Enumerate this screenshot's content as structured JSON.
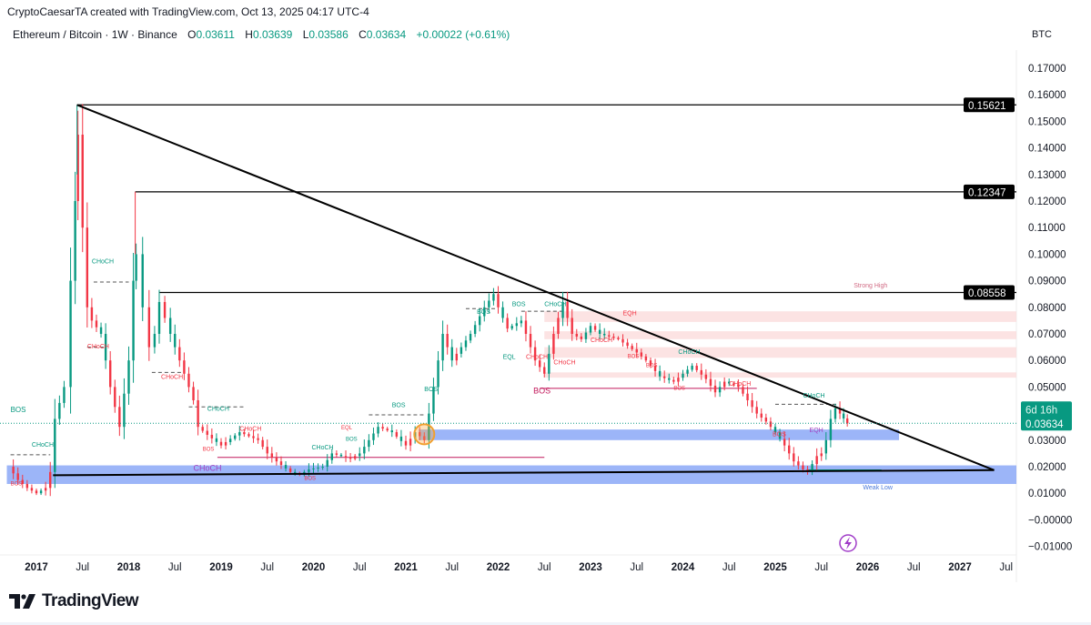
{
  "header": {
    "credit": "CryptoCaesarTA created with TradingView.com, Oct 13, 2025 04:17 UTC-4",
    "symbol": "Ethereum / Bitcoin · 1W · Binance",
    "o_label": "O",
    "o": "0.03611",
    "h_label": "H",
    "h": "0.03639",
    "l_label": "L",
    "l": "0.03586",
    "c_label": "C",
    "c": "0.03634",
    "change": "+0.00022 (+0.61%)",
    "currency": "BTC"
  },
  "branding": {
    "logo_text": "TradingView"
  },
  "colors": {
    "up": "#089981",
    "down": "#f23645",
    "zone_blue": "#7b9cf5",
    "zone_pink": "#fbdcdc",
    "bos_red": "#c2185b"
  },
  "chart_data": {
    "type": "candlestick",
    "title": "Ethereum / Bitcoin · 1W · Binance",
    "ylim": [
      -0.015,
      0.175
    ],
    "xlim": [
      2016.68,
      2027.7
    ],
    "y_ticks": [
      "0.17000",
      "0.16000",
      "0.15000",
      "0.14000",
      "0.13000",
      "0.12000",
      "0.11000",
      "0.10000",
      "0.09000",
      "0.08000",
      "0.07000",
      "0.06000",
      "0.05000",
      "0.03000",
      "0.02000",
      "0.01000",
      "−0.00000",
      "−0.01000"
    ],
    "y_tick_values": [
      0.17,
      0.16,
      0.15,
      0.14,
      0.13,
      0.12,
      0.11,
      0.1,
      0.09,
      0.08,
      0.07,
      0.06,
      0.05,
      0.03,
      0.02,
      0.01,
      0,
      -0.01
    ],
    "x_ticks": [
      {
        "label": "2017",
        "t": 2017
      },
      {
        "label": "Jul",
        "t": 2017.5
      },
      {
        "label": "2018",
        "t": 2018
      },
      {
        "label": "Jul",
        "t": 2018.5
      },
      {
        "label": "2019",
        "t": 2019
      },
      {
        "label": "Jul",
        "t": 2019.5
      },
      {
        "label": "2020",
        "t": 2020
      },
      {
        "label": "Jul",
        "t": 2020.5
      },
      {
        "label": "2021",
        "t": 2021
      },
      {
        "label": "Jul",
        "t": 2021.5
      },
      {
        "label": "2022",
        "t": 2022
      },
      {
        "label": "Jul",
        "t": 2022.5
      },
      {
        "label": "2023",
        "t": 2023
      },
      {
        "label": "Jul",
        "t": 2023.5
      },
      {
        "label": "2024",
        "t": 2024
      },
      {
        "label": "Jul",
        "t": 2024.5
      },
      {
        "label": "2025",
        "t": 2025
      },
      {
        "label": "Jul",
        "t": 2025.5
      },
      {
        "label": "2026",
        "t": 2026
      },
      {
        "label": "Jul",
        "t": 2026.5
      },
      {
        "label": "2027",
        "t": 2027
      },
      {
        "label": "Jul",
        "t": 2027.5
      }
    ],
    "closes": [
      [
        2016.7,
        0.02
      ],
      [
        2016.8,
        0.015
      ],
      [
        2016.9,
        0.012
      ],
      [
        2017.0,
        0.01
      ],
      [
        2017.1,
        0.012
      ],
      [
        2017.15,
        0.018
      ],
      [
        2017.2,
        0.038
      ],
      [
        2017.3,
        0.05
      ],
      [
        2017.37,
        0.09
      ],
      [
        2017.42,
        0.12
      ],
      [
        2017.45,
        0.145
      ],
      [
        2017.5,
        0.11
      ],
      [
        2017.55,
        0.08
      ],
      [
        2017.6,
        0.075
      ],
      [
        2017.7,
        0.07
      ],
      [
        2017.8,
        0.05
      ],
      [
        2017.9,
        0.035
      ],
      [
        2018.0,
        0.06
      ],
      [
        2018.05,
        0.09
      ],
      [
        2018.08,
        0.1
      ],
      [
        2018.15,
        0.08
      ],
      [
        2018.22,
        0.065
      ],
      [
        2018.28,
        0.07
      ],
      [
        2018.33,
        0.082
      ],
      [
        2018.45,
        0.07
      ],
      [
        2018.55,
        0.06
      ],
      [
        2018.7,
        0.045
      ],
      [
        2018.75,
        0.035
      ],
      [
        2018.85,
        0.032
      ],
      [
        2019.0,
        0.028
      ],
      [
        2019.2,
        0.033
      ],
      [
        2019.4,
        0.03
      ],
      [
        2019.5,
        0.025
      ],
      [
        2019.6,
        0.022
      ],
      [
        2019.75,
        0.018
      ],
      [
        2019.85,
        0.017
      ],
      [
        2019.95,
        0.019
      ],
      [
        2020.1,
        0.02
      ],
      [
        2020.2,
        0.025
      ],
      [
        2020.4,
        0.023
      ],
      [
        2020.5,
        0.025
      ],
      [
        2020.6,
        0.03
      ],
      [
        2020.7,
        0.035
      ],
      [
        2020.85,
        0.033
      ],
      [
        2021.0,
        0.028
      ],
      [
        2021.1,
        0.033
      ],
      [
        2021.2,
        0.03
      ],
      [
        2021.3,
        0.05
      ],
      [
        2021.4,
        0.07
      ],
      [
        2021.5,
        0.06
      ],
      [
        2021.6,
        0.065
      ],
      [
        2021.7,
        0.07
      ],
      [
        2021.85,
        0.08
      ],
      [
        2021.95,
        0.085
      ],
      [
        2022.0,
        0.08
      ],
      [
        2022.1,
        0.072
      ],
      [
        2022.25,
        0.075
      ],
      [
        2022.4,
        0.06
      ],
      [
        2022.5,
        0.055
      ],
      [
        2022.6,
        0.07
      ],
      [
        2022.7,
        0.082
      ],
      [
        2022.8,
        0.07
      ],
      [
        2022.9,
        0.068
      ],
      [
        2023.0,
        0.073
      ],
      [
        2023.1,
        0.07
      ],
      [
        2023.3,
        0.068
      ],
      [
        2023.5,
        0.063
      ],
      [
        2023.6,
        0.06
      ],
      [
        2023.75,
        0.054
      ],
      [
        2023.9,
        0.052
      ],
      [
        2024.0,
        0.055
      ],
      [
        2024.1,
        0.058
      ],
      [
        2024.25,
        0.053
      ],
      [
        2024.35,
        0.048
      ],
      [
        2024.45,
        0.052
      ],
      [
        2024.6,
        0.05
      ],
      [
        2024.7,
        0.045
      ],
      [
        2024.8,
        0.04
      ],
      [
        2024.9,
        0.037
      ],
      [
        2025.0,
        0.033
      ],
      [
        2025.1,
        0.028
      ],
      [
        2025.2,
        0.022
      ],
      [
        2025.3,
        0.019
      ],
      [
        2025.35,
        0.018
      ],
      [
        2025.45,
        0.024
      ],
      [
        2025.5,
        0.025
      ],
      [
        2025.55,
        0.03
      ],
      [
        2025.6,
        0.038
      ],
      [
        2025.65,
        0.042
      ],
      [
        2025.7,
        0.04
      ],
      [
        2025.78,
        0.03634
      ]
    ],
    "last_price": {
      "value": 0.03634,
      "label": "0.03634",
      "countdown": "6d 16h"
    },
    "levels": [
      {
        "value": 0.15621,
        "label": "0.15621",
        "from": 2017.44
      },
      {
        "value": 0.12347,
        "label": "0.12347",
        "from": 2018.07
      },
      {
        "value": 0.08558,
        "label": "0.08558",
        "from": 2018.33
      }
    ],
    "trendlines": [
      {
        "from": [
          2017.44,
          0.1562
        ],
        "to": [
          2027.37,
          0.0187
        ]
      },
      {
        "from": [
          2017.18,
          0.0168
        ],
        "to": [
          2027.37,
          0.0187
        ]
      }
    ],
    "zones": [
      {
        "kind": "supply",
        "from": 2022.5,
        "low": 0.0745,
        "high": 0.0785
      },
      {
        "kind": "supply",
        "from": 2022.5,
        "low": 0.068,
        "high": 0.071
      },
      {
        "kind": "supply",
        "from": 2022.5,
        "low": 0.061,
        "high": 0.065
      },
      {
        "kind": "supply",
        "from": 2022.5,
        "low": 0.0535,
        "high": 0.0555
      },
      {
        "kind": "demand",
        "from": 2021.14,
        "to": 2026.34,
        "low": 0.03,
        "high": 0.034
      },
      {
        "kind": "demand",
        "from": 2016.68,
        "low": 0.0135,
        "high": 0.0205
      }
    ],
    "annotations": [
      {
        "text": "Strong High",
        "t": 2025.85,
        "p": 0.0875,
        "color": "#d16b84",
        "size": 7
      },
      {
        "text": "Weak Low",
        "t": 2025.95,
        "p": 0.0115,
        "color": "#4a78d8",
        "size": 7
      },
      {
        "text": "BOS",
        "t": 2022.38,
        "p": 0.0475,
        "color": "#c2185b",
        "size": 9
      },
      {
        "text": "CHoCH",
        "t": 2017.6,
        "p": 0.0965,
        "color": "#089981",
        "size": 7
      },
      {
        "text": "CHoCH",
        "t": 2017.55,
        "p": 0.0645,
        "color": "#f23645",
        "size": 7
      },
      {
        "text": "CHoCH",
        "t": 2018.35,
        "p": 0.053,
        "color": "#f23645",
        "size": 7
      },
      {
        "text": "CHoCH",
        "t": 2018.85,
        "p": 0.041,
        "color": "#089981",
        "size": 7
      },
      {
        "text": "CHoCH",
        "t": 2019.2,
        "p": 0.0335,
        "color": "#f23645",
        "size": 7
      },
      {
        "text": "BOS",
        "t": 2018.8,
        "p": 0.026,
        "color": "#f23645",
        "size": 6
      },
      {
        "text": "CHoCH",
        "t": 2018.7,
        "p": 0.0185,
        "color": "#a040c0",
        "size": 9
      },
      {
        "text": "CHoCH",
        "t": 2016.95,
        "p": 0.0275,
        "color": "#089981",
        "size": 7
      },
      {
        "text": "BOS",
        "t": 2016.72,
        "p": 0.0405,
        "color": "#089981",
        "size": 8
      },
      {
        "text": "BOS",
        "t": 2016.72,
        "p": 0.013,
        "color": "#f23645",
        "size": 6
      },
      {
        "text": "CHoCH",
        "t": 2019.98,
        "p": 0.0265,
        "color": "#089981",
        "size": 7
      },
      {
        "text": "BOS",
        "t": 2019.9,
        "p": 0.015,
        "color": "#f23645",
        "size": 6
      },
      {
        "text": "BOS",
        "t": 2020.85,
        "p": 0.0425,
        "color": "#089981",
        "size": 7
      },
      {
        "text": "BOS",
        "t": 2021.2,
        "p": 0.0485,
        "color": "#089981",
        "size": 7
      },
      {
        "text": "BOS",
        "t": 2021.77,
        "p": 0.0775,
        "color": "#089981",
        "size": 7
      },
      {
        "text": "BOS",
        "t": 2022.15,
        "p": 0.0805,
        "color": "#089981",
        "size": 7
      },
      {
        "text": "CHoCH",
        "t": 2022.5,
        "p": 0.0805,
        "color": "#089981",
        "size": 7
      },
      {
        "text": "EQL",
        "t": 2022.05,
        "p": 0.0605,
        "color": "#089981",
        "size": 7
      },
      {
        "text": "CHoCH",
        "t": 2022.3,
        "p": 0.0605,
        "color": "#f23645",
        "size": 7
      },
      {
        "text": "CHoCH",
        "t": 2022.6,
        "p": 0.0585,
        "color": "#f23645",
        "size": 7
      },
      {
        "text": "EQH",
        "t": 2023.35,
        "p": 0.077,
        "color": "#f23645",
        "size": 7
      },
      {
        "text": "CHoCH",
        "t": 2023.0,
        "p": 0.067,
        "color": "#f23645",
        "size": 7
      },
      {
        "text": "BOS",
        "t": 2023.4,
        "p": 0.061,
        "color": "#f23645",
        "size": 6
      },
      {
        "text": "BOS",
        "t": 2023.6,
        "p": 0.0575,
        "color": "#f23645",
        "size": 6
      },
      {
        "text": "CHoCH",
        "t": 2023.95,
        "p": 0.0625,
        "color": "#089981",
        "size": 7
      },
      {
        "text": "BOS",
        "t": 2023.9,
        "p": 0.049,
        "color": "#f23645",
        "size": 6
      },
      {
        "text": "CHoCH",
        "t": 2024.5,
        "p": 0.0505,
        "color": "#f23645",
        "size": 7
      },
      {
        "text": "CHoCH",
        "t": 2025.3,
        "p": 0.046,
        "color": "#089981",
        "size": 7
      },
      {
        "text": "BOS",
        "t": 2024.97,
        "p": 0.0315,
        "color": "#f23645",
        "size": 7
      },
      {
        "text": "EQH",
        "t": 2025.37,
        "p": 0.033,
        "color": "#a040c0",
        "size": 7
      },
      {
        "text": "EQL",
        "t": 2020.3,
        "p": 0.034,
        "color": "#f23645",
        "size": 6
      },
      {
        "text": "BOS",
        "t": 2020.35,
        "p": 0.0345,
        "color": "#089981",
        "size": 6
      }
    ],
    "structure_lines": [
      {
        "t1": 2017.62,
        "t2": 2018.0,
        "p": 0.0895,
        "color": "#555"
      },
      {
        "t1": 2018.65,
        "t2": 2019.25,
        "p": 0.0425,
        "color": "#555"
      },
      {
        "t1": 2016.72,
        "t2": 2017.15,
        "p": 0.0245,
        "color": "#555"
      },
      {
        "t1": 2017.55,
        "t2": 2017.75,
        "p": 0.065,
        "color": "#555"
      },
      {
        "t1": 2018.25,
        "t2": 2018.6,
        "p": 0.0555,
        "color": "#555"
      },
      {
        "t1": 2018.96,
        "t2": 2022.5,
        "p": 0.0235,
        "color": "#c2185b",
        "solid": true
      },
      {
        "t1": 2022.45,
        "t2": 2024.8,
        "p": 0.0495,
        "color": "#c2185b",
        "solid": true
      },
      {
        "t1": 2025.0,
        "t2": 2025.68,
        "p": 0.0435,
        "color": "#555"
      },
      {
        "t1": 2020.6,
        "t2": 2021.2,
        "p": 0.0395,
        "color": "#555"
      },
      {
        "t1": 2021.65,
        "t2": 2022.0,
        "p": 0.0795,
        "color": "#555"
      },
      {
        "t1": 2022.25,
        "t2": 2022.7,
        "p": 0.0785,
        "color": "#555"
      },
      {
        "t1": 2025.35,
        "t2": 2026.15,
        "p": 0.0188,
        "color": "#089981",
        "solid": true
      }
    ],
    "highlight_circle": {
      "t": 2021.2,
      "p": 0.0322
    }
  }
}
